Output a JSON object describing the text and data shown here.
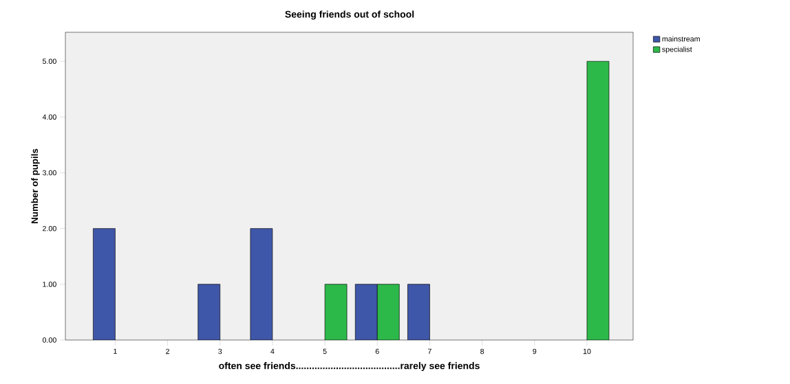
{
  "chart_data": {
    "type": "bar",
    "title": "Seeing friends out of school",
    "xlabel": "often see friends.......................................rarely see friends",
    "ylabel": "Number of pupils",
    "categories": [
      "1",
      "2",
      "3",
      "4",
      "5",
      "6",
      "7",
      "8",
      "9",
      "10"
    ],
    "series": [
      {
        "name": "mainstream",
        "color": "#3f57a9",
        "values": [
          2,
          null,
          1,
          2,
          null,
          1,
          1,
          null,
          null,
          null
        ]
      },
      {
        "name": "specialist",
        "color": "#2db84a",
        "values": [
          null,
          null,
          null,
          null,
          1,
          1,
          null,
          null,
          null,
          5
        ]
      }
    ],
    "ylim": [
      0,
      5.52
    ],
    "yticks": [
      {
        "value": 0,
        "label": "0.00"
      },
      {
        "value": 1,
        "label": "1.00"
      },
      {
        "value": 2,
        "label": "2.00"
      },
      {
        "value": 3,
        "label": "3.00"
      },
      {
        "value": 4,
        "label": "4.00"
      },
      {
        "value": 5,
        "label": "5.00"
      }
    ],
    "grid": false,
    "legend": "top right"
  }
}
